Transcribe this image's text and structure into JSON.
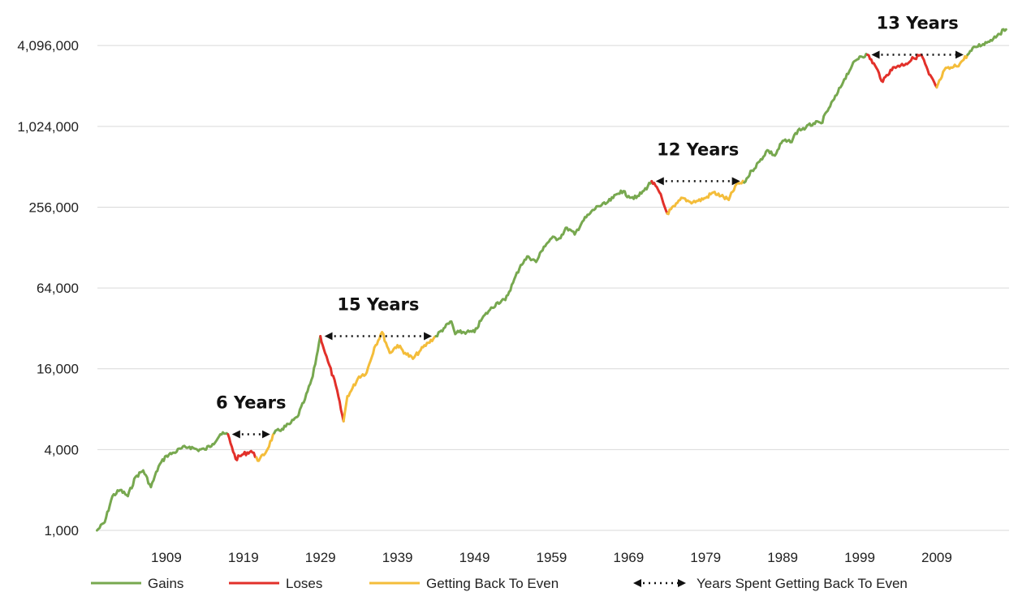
{
  "chart_data": {
    "type": "line",
    "title": "",
    "xlabel": "",
    "ylabel": "",
    "y_scale": "log2",
    "ylim": [
      1000,
      5500000
    ],
    "xlim": [
      1900,
      2018
    ],
    "y_ticks": [
      {
        "value": 1000,
        "label": "1,000"
      },
      {
        "value": 4000,
        "label": "4,000"
      },
      {
        "value": 16000,
        "label": "16,000"
      },
      {
        "value": 64000,
        "label": "64,000"
      },
      {
        "value": 256000,
        "label": "256,000"
      },
      {
        "value": 1024000,
        "label": "1,024,000"
      },
      {
        "value": 4096000,
        "label": "4,096,000"
      }
    ],
    "x_ticks": [
      {
        "value": 1909,
        "label": "1909"
      },
      {
        "value": 1919,
        "label": "1919"
      },
      {
        "value": 1929,
        "label": "1929"
      },
      {
        "value": 1939,
        "label": "1939"
      },
      {
        "value": 1949,
        "label": "1949"
      },
      {
        "value": 1959,
        "label": "1959"
      },
      {
        "value": 1969,
        "label": "1969"
      },
      {
        "value": 1979,
        "label": "1979"
      },
      {
        "value": 1989,
        "label": "1989"
      },
      {
        "value": 1999,
        "label": "1999"
      },
      {
        "value": 2009,
        "label": "2009"
      }
    ],
    "grid": {
      "horizontal": true,
      "vertical": false
    },
    "legend_position": "bottom",
    "colors": {
      "gains": "#77a84f",
      "loses": "#e2302a",
      "recovery": "#f4bd3a",
      "arrow": "#111111",
      "grid": "#d9d9d9"
    },
    "legend": [
      {
        "key": "gains",
        "label": "Gains",
        "kind": "line"
      },
      {
        "key": "loses",
        "label": "Loses",
        "kind": "line"
      },
      {
        "key": "recovery",
        "label": "Getting Back To Even",
        "kind": "line"
      },
      {
        "key": "arrow",
        "label": "Years Spent Getting Back To Even",
        "kind": "arrow"
      }
    ],
    "series": [
      {
        "key": "gains",
        "points": [
          [
            1900,
            1000
          ],
          [
            1901,
            1150
          ],
          [
            1902,
            1800
          ],
          [
            1903,
            2000
          ],
          [
            1904,
            1800
          ],
          [
            1905,
            2500
          ],
          [
            1906,
            2800
          ],
          [
            1907,
            2100
          ],
          [
            1908,
            3000
          ],
          [
            1909,
            3600
          ],
          [
            1910,
            3800
          ],
          [
            1911,
            4100
          ],
          [
            1912,
            4200
          ],
          [
            1913,
            4000
          ],
          [
            1914,
            4000
          ],
          [
            1915,
            4400
          ],
          [
            1916,
            5200
          ],
          [
            1917,
            5200
          ]
        ]
      },
      {
        "key": "loses",
        "points": [
          [
            1917,
            5200
          ],
          [
            1917.5,
            4200
          ],
          [
            1918,
            3400
          ],
          [
            1919,
            3700
          ],
          [
            1920,
            3900
          ],
          [
            1920.7,
            3500
          ]
        ]
      },
      {
        "key": "recovery",
        "points": [
          [
            1920.7,
            3500
          ],
          [
            1921,
            3300
          ],
          [
            1922,
            3900
          ],
          [
            1923,
            5300
          ]
        ]
      },
      {
        "key": "gains",
        "points": [
          [
            1923,
            5300
          ],
          [
            1924,
            5700
          ],
          [
            1925,
            6200
          ],
          [
            1926,
            7000
          ],
          [
            1927,
            9500
          ],
          [
            1928,
            14000
          ],
          [
            1929,
            28000
          ]
        ]
      },
      {
        "key": "loses",
        "points": [
          [
            1929,
            28000
          ],
          [
            1929.6,
            21000
          ],
          [
            1930,
            18000
          ],
          [
            1931,
            12000
          ],
          [
            1932,
            6500
          ]
        ]
      },
      {
        "key": "recovery",
        "points": [
          [
            1932,
            6500
          ],
          [
            1932.5,
            10000
          ],
          [
            1933,
            11000
          ],
          [
            1934,
            14000
          ],
          [
            1935,
            15000
          ],
          [
            1936,
            23000
          ],
          [
            1937,
            30000
          ],
          [
            1938,
            21000
          ],
          [
            1939,
            24000
          ],
          [
            1940,
            21000
          ],
          [
            1941,
            19000
          ],
          [
            1942,
            22000
          ],
          [
            1943,
            25000
          ],
          [
            1944,
            28000
          ]
        ]
      },
      {
        "key": "gains",
        "points": [
          [
            1944,
            28000
          ],
          [
            1945,
            32000
          ],
          [
            1946,
            36000
          ],
          [
            1946.5,
            29000
          ],
          [
            1947,
            30000
          ],
          [
            1948,
            30000
          ],
          [
            1949,
            30000
          ],
          [
            1950,
            38000
          ],
          [
            1951,
            44000
          ],
          [
            1952,
            50000
          ],
          [
            1953,
            52000
          ],
          [
            1954,
            70000
          ],
          [
            1955,
            95000
          ],
          [
            1956,
            110000
          ],
          [
            1957,
            100000
          ],
          [
            1958,
            130000
          ],
          [
            1959,
            150000
          ],
          [
            1960,
            150000
          ],
          [
            1961,
            180000
          ],
          [
            1962,
            160000
          ],
          [
            1963,
            200000
          ],
          [
            1964,
            230000
          ],
          [
            1965,
            260000
          ],
          [
            1966,
            270000
          ],
          [
            1967,
            300000
          ],
          [
            1968,
            340000
          ],
          [
            1969,
            310000
          ],
          [
            1970,
            300000
          ],
          [
            1971,
            340000
          ],
          [
            1972,
            400000
          ]
        ]
      },
      {
        "key": "loses",
        "points": [
          [
            1972,
            400000
          ],
          [
            1973,
            330000
          ],
          [
            1974,
            230000
          ]
        ]
      },
      {
        "key": "recovery",
        "points": [
          [
            1974,
            230000
          ],
          [
            1975,
            260000
          ],
          [
            1976,
            300000
          ],
          [
            1977,
            280000
          ],
          [
            1978,
            285000
          ],
          [
            1979,
            300000
          ],
          [
            1980,
            330000
          ],
          [
            1981,
            310000
          ],
          [
            1982,
            290000
          ],
          [
            1983,
            380000
          ],
          [
            1984,
            390000
          ]
        ]
      },
      {
        "key": "gains",
        "points": [
          [
            1984,
            390000
          ],
          [
            1985,
            480000
          ],
          [
            1986,
            560000
          ],
          [
            1987,
            680000
          ],
          [
            1988,
            620000
          ],
          [
            1989,
            800000
          ],
          [
            1990,
            780000
          ],
          [
            1991,
            960000
          ],
          [
            1992,
            1000000
          ],
          [
            1993,
            1080000
          ],
          [
            1994,
            1080000
          ],
          [
            1995,
            1400000
          ],
          [
            1996,
            1750000
          ],
          [
            1997,
            2300000
          ],
          [
            1998,
            2900000
          ],
          [
            1999,
            3400000
          ],
          [
            2000,
            3500000
          ]
        ]
      },
      {
        "key": "loses",
        "points": [
          [
            2000,
            3500000
          ],
          [
            2001,
            2900000
          ],
          [
            2002,
            2200000
          ],
          [
            2003,
            2700000
          ],
          [
            2004,
            2900000
          ],
          [
            2005,
            3000000
          ],
          [
            2006,
            3300000
          ],
          [
            2007,
            3500000
          ],
          [
            2008,
            2500000
          ],
          [
            2009,
            2000000
          ]
        ]
      },
      {
        "key": "recovery",
        "points": [
          [
            2009,
            2000000
          ],
          [
            2009.5,
            2300000
          ],
          [
            2010,
            2700000
          ],
          [
            2011,
            2800000
          ],
          [
            2012,
            3000000
          ],
          [
            2013,
            3500000
          ]
        ]
      },
      {
        "key": "gains",
        "points": [
          [
            2013,
            3500000
          ],
          [
            2014,
            4000000
          ],
          [
            2015,
            4200000
          ],
          [
            2016,
            4500000
          ],
          [
            2017,
            5000000
          ],
          [
            2018,
            5400000
          ]
        ]
      }
    ],
    "annotations": [
      {
        "text": "6 Years",
        "x_start": 1917,
        "x_end": 1923,
        "y": 5200
      },
      {
        "text": "15 Years",
        "x_start": 1929,
        "x_end": 1944,
        "y": 28000
      },
      {
        "text": "12 Years",
        "x_start": 1972,
        "x_end": 1984,
        "y": 400000
      },
      {
        "text": "13 Years",
        "x_start": 2000,
        "x_end": 2013,
        "y": 3500000
      }
    ]
  }
}
